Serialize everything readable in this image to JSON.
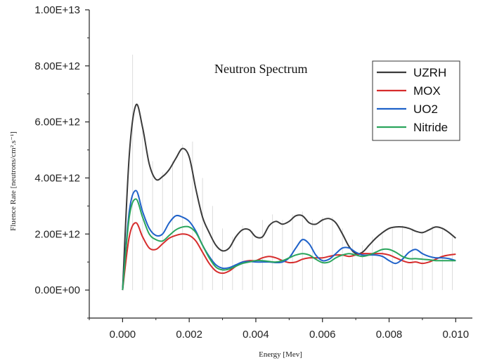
{
  "chart_data": {
    "type": "line",
    "title": "Neutron Spectrum",
    "xlabel": "Energy [Mev]",
    "ylabel": "Fluence Rate [neutrons/cm².s⁻¹]",
    "xlim": [
      -0.001,
      0.0105
    ],
    "ylim": [
      -1000000000000.0,
      10000000000000.0
    ],
    "x_ticks": [
      0.0,
      0.002,
      0.004,
      0.006,
      0.008,
      0.01
    ],
    "x_tick_labels": [
      "0.000",
      "0.002",
      "0.004",
      "0.006",
      "0.008",
      "0.010"
    ],
    "y_ticks": [
      0,
      2000000000000.0,
      4000000000000.0,
      6000000000000.0,
      8000000000000.0,
      10000000000000.0
    ],
    "y_tick_labels": [
      "0.00E+00",
      "2.00E+12",
      "4.00E+12",
      "6.00E+12",
      "8.00E+12",
      "1.00E+13"
    ],
    "legend_position": "top-right",
    "grid": false,
    "colors": {
      "UZRH": "#3a3a3a",
      "MOX": "#d62c2c",
      "UO2": "#1f62c9",
      "Nitride": "#2aa55c",
      "stems": "#dcdcdc",
      "axis": "#222222"
    },
    "stem_x": [
      0.0003,
      0.0006,
      0.0009,
      0.0012,
      0.0015,
      0.0018,
      0.0021,
      0.0024,
      0.0027,
      0.003,
      0.0033,
      0.0036,
      0.0039,
      0.0042,
      0.0045,
      0.0048,
      0.0051,
      0.0054,
      0.0057,
      0.006,
      0.0063,
      0.0066,
      0.0069,
      0.0072,
      0.0075,
      0.0078,
      0.0081,
      0.0084,
      0.0087,
      0.009,
      0.0093,
      0.0096,
      0.0099
    ],
    "stem_y": [
      8400000000000.0,
      5800000000000.0,
      4600000000000.0,
      4200000000000.0,
      4600000000000.0,
      5200000000000.0,
      5300000000000.0,
      4000000000000.0,
      3000000000000.0,
      2200000000000.0,
      1900000000000.0,
      2300000000000.0,
      2100000000000.0,
      2500000000000.0,
      2700000000000.0,
      2500000000000.0,
      2700000000000.0,
      2800000000000.0,
      2500000000000.0,
      2600000000000.0,
      2600000000000.0,
      2200000000000.0,
      1800000000000.0,
      1600000000000.0,
      1900000000000.0,
      2000000000000.0,
      2200000000000.0,
      2300000000000.0,
      2200000000000.0,
      2100000000000.0,
      2300000000000.0,
      2200000000000.0,
      1900000000000.0
    ],
    "series": [
      {
        "name": "UZRH",
        "x": [
          0.0,
          0.0002,
          0.0004,
          0.0006,
          0.0008,
          0.001,
          0.0012,
          0.0014,
          0.0016,
          0.0018,
          0.002,
          0.0022,
          0.0024,
          0.0026,
          0.0028,
          0.003,
          0.0032,
          0.0034,
          0.0036,
          0.0038,
          0.004,
          0.0042,
          0.0044,
          0.0046,
          0.0048,
          0.005,
          0.0052,
          0.0054,
          0.0056,
          0.0058,
          0.006,
          0.0062,
          0.0064,
          0.0066,
          0.0068,
          0.007,
          0.0072,
          0.0074,
          0.0076,
          0.0078,
          0.008,
          0.0082,
          0.0084,
          0.0086,
          0.0088,
          0.009,
          0.0092,
          0.0094,
          0.0096,
          0.0098,
          0.01
        ],
        "y": [
          0.0,
          4800000000000.0,
          6600000000000.0,
          5800000000000.0,
          4500000000000.0,
          3950000000000.0,
          4050000000000.0,
          4300000000000.0,
          4700000000000.0,
          5050000000000.0,
          4750000000000.0,
          3600000000000.0,
          2600000000000.0,
          2050000000000.0,
          1600000000000.0,
          1400000000000.0,
          1500000000000.0,
          1900000000000.0,
          2150000000000.0,
          2150000000000.0,
          1900000000000.0,
          1900000000000.0,
          2300000000000.0,
          2450000000000.0,
          2350000000000.0,
          2450000000000.0,
          2650000000000.0,
          2650000000000.0,
          2400000000000.0,
          2350000000000.0,
          2500000000000.0,
          2550000000000.0,
          2400000000000.0,
          2000000000000.0,
          1550000000000.0,
          1300000000000.0,
          1350000000000.0,
          1600000000000.0,
          1850000000000.0,
          2050000000000.0,
          2200000000000.0,
          2250000000000.0,
          2250000000000.0,
          2200000000000.0,
          2100000000000.0,
          2050000000000.0,
          2150000000000.0,
          2250000000000.0,
          2200000000000.0,
          2050000000000.0,
          1850000000000.0
        ]
      },
      {
        "name": "MOX",
        "x": [
          0.0,
          0.0002,
          0.0004,
          0.0006,
          0.0008,
          0.001,
          0.0012,
          0.0014,
          0.0016,
          0.0018,
          0.002,
          0.0022,
          0.0024,
          0.0026,
          0.0028,
          0.003,
          0.0032,
          0.0034,
          0.0036,
          0.0038,
          0.004,
          0.0042,
          0.0044,
          0.0046,
          0.0048,
          0.005,
          0.0052,
          0.0054,
          0.0056,
          0.0058,
          0.006,
          0.0062,
          0.0064,
          0.0066,
          0.0068,
          0.007,
          0.0072,
          0.0074,
          0.0076,
          0.0078,
          0.008,
          0.0082,
          0.0084,
          0.0086,
          0.0088,
          0.009,
          0.0092,
          0.0094,
          0.0096,
          0.0098,
          0.01
        ],
        "y": [
          0.0,
          1900000000000.0,
          2400000000000.0,
          1900000000000.0,
          1500000000000.0,
          1450000000000.0,
          1650000000000.0,
          1850000000000.0,
          1950000000000.0,
          2000000000000.0,
          1950000000000.0,
          1750000000000.0,
          1350000000000.0,
          950000000000.0,
          680000000000.0,
          600000000000.0,
          680000000000.0,
          850000000000.0,
          1000000000000.0,
          1050000000000.0,
          1050000000000.0,
          1150000000000.0,
          1200000000000.0,
          1150000000000.0,
          1050000000000.0,
          980000000000.0,
          1000000000000.0,
          1100000000000.0,
          1150000000000.0,
          1150000000000.0,
          1150000000000.0,
          1200000000000.0,
          1250000000000.0,
          1250000000000.0,
          1200000000000.0,
          1250000000000.0,
          1300000000000.0,
          1300000000000.0,
          1300000000000.0,
          1300000000000.0,
          1250000000000.0,
          1150000000000.0,
          1050000000000.0,
          980000000000.0,
          1000000000000.0,
          950000000000.0,
          1000000000000.0,
          1100000000000.0,
          1200000000000.0,
          1250000000000.0,
          1280000000000.0
        ]
      },
      {
        "name": "UO2",
        "x": [
          0.0,
          0.0002,
          0.0004,
          0.0006,
          0.0008,
          0.001,
          0.0012,
          0.0014,
          0.0016,
          0.0018,
          0.002,
          0.0022,
          0.0024,
          0.0026,
          0.0028,
          0.003,
          0.0032,
          0.0034,
          0.0036,
          0.0038,
          0.004,
          0.0042,
          0.0044,
          0.0046,
          0.0048,
          0.005,
          0.0052,
          0.0054,
          0.0056,
          0.0058,
          0.006,
          0.0062,
          0.0064,
          0.0066,
          0.0068,
          0.007,
          0.0072,
          0.0074,
          0.0076,
          0.0078,
          0.008,
          0.0082,
          0.0084,
          0.0086,
          0.0088,
          0.009,
          0.0092,
          0.0094,
          0.0096,
          0.0098,
          0.01
        ],
        "y": [
          0.0,
          2800000000000.0,
          3550000000000.0,
          2800000000000.0,
          2200000000000.0,
          1950000000000.0,
          2000000000000.0,
          2400000000000.0,
          2650000000000.0,
          2600000000000.0,
          2450000000000.0,
          2100000000000.0,
          1600000000000.0,
          1200000000000.0,
          900000000000.0,
          780000000000.0,
          800000000000.0,
          900000000000.0,
          1000000000000.0,
          1020000000000.0,
          1000000000000.0,
          1000000000000.0,
          1000000000000.0,
          980000000000.0,
          1000000000000.0,
          1150000000000.0,
          1500000000000.0,
          1800000000000.0,
          1650000000000.0,
          1250000000000.0,
          1050000000000.0,
          1100000000000.0,
          1300000000000.0,
          1500000000000.0,
          1500000000000.0,
          1350000000000.0,
          1250000000000.0,
          1250000000000.0,
          1250000000000.0,
          1200000000000.0,
          1050000000000.0,
          950000000000.0,
          1100000000000.0,
          1350000000000.0,
          1450000000000.0,
          1300000000000.0,
          1200000000000.0,
          1150000000000.0,
          1150000000000.0,
          1120000000000.0,
          1050000000000.0
        ]
      },
      {
        "name": "Nitride",
        "x": [
          0.0,
          0.0002,
          0.0004,
          0.0006,
          0.0008,
          0.001,
          0.0012,
          0.0014,
          0.0016,
          0.0018,
          0.002,
          0.0022,
          0.0024,
          0.0026,
          0.0028,
          0.003,
          0.0032,
          0.0034,
          0.0036,
          0.0038,
          0.004,
          0.0042,
          0.0044,
          0.0046,
          0.0048,
          0.005,
          0.0052,
          0.0054,
          0.0056,
          0.0058,
          0.006,
          0.0062,
          0.0064,
          0.0066,
          0.0068,
          0.007,
          0.0072,
          0.0074,
          0.0076,
          0.0078,
          0.008,
          0.0082,
          0.0084,
          0.0086,
          0.0088,
          0.009,
          0.0092,
          0.0094,
          0.0096,
          0.0098,
          0.01
        ],
        "y": [
          0.0,
          2600000000000.0,
          3250000000000.0,
          2600000000000.0,
          2000000000000.0,
          1800000000000.0,
          1750000000000.0,
          1950000000000.0,
          2150000000000.0,
          2250000000000.0,
          2250000000000.0,
          2050000000000.0,
          1600000000000.0,
          1150000000000.0,
          820000000000.0,
          720000000000.0,
          750000000000.0,
          850000000000.0,
          950000000000.0,
          1000000000000.0,
          1050000000000.0,
          1050000000000.0,
          1020000000000.0,
          1000000000000.0,
          1050000000000.0,
          1150000000000.0,
          1250000000000.0,
          1300000000000.0,
          1250000000000.0,
          1100000000000.0,
          980000000000.0,
          1000000000000.0,
          1150000000000.0,
          1250000000000.0,
          1300000000000.0,
          1250000000000.0,
          1200000000000.0,
          1250000000000.0,
          1350000000000.0,
          1450000000000.0,
          1450000000000.0,
          1350000000000.0,
          1200000000000.0,
          1120000000000.0,
          1120000000000.0,
          1100000000000.0,
          1080000000000.0,
          1050000000000.0,
          1050000000000.0,
          1050000000000.0,
          1050000000000.0
        ]
      }
    ]
  }
}
